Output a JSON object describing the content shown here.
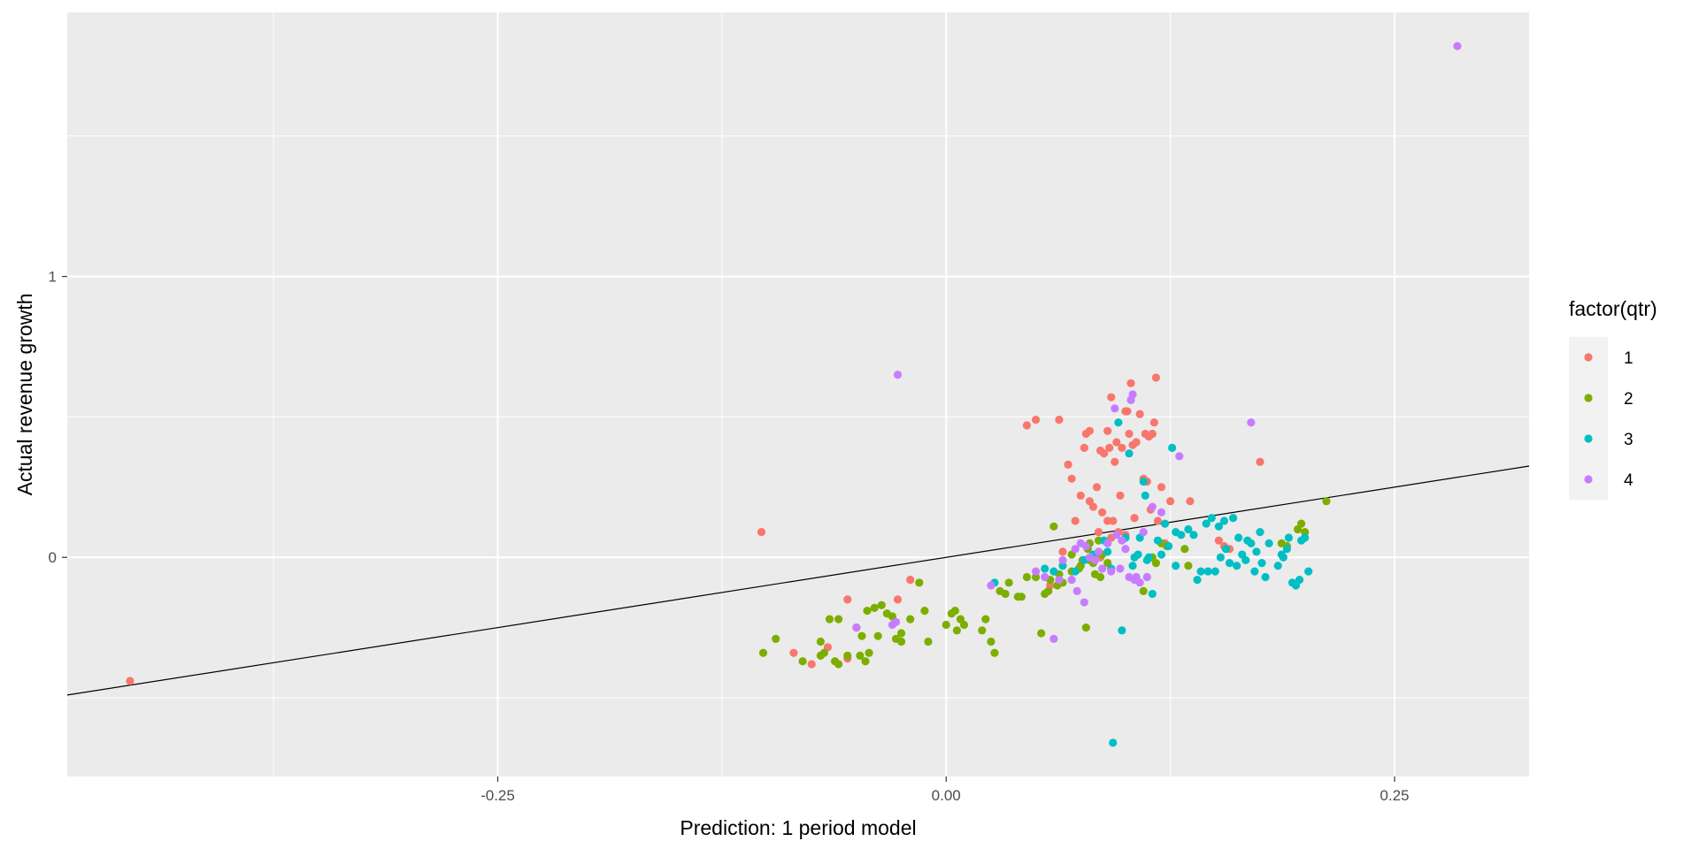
{
  "chart_data": {
    "type": "scatter",
    "xlabel": "Prediction: 1 period model",
    "ylabel": "Actual revenue growth",
    "xlim": [
      -0.49,
      0.325
    ],
    "ylim": [
      -0.78,
      1.94
    ],
    "x_ticks": [
      -0.25,
      0.0,
      0.25
    ],
    "x_tick_labels": [
      "-0.25",
      "0.00",
      "0.25"
    ],
    "y_ticks": [
      0,
      1
    ],
    "y_tick_labels": [
      "0",
      "1"
    ],
    "x_minor_ticks": [
      -0.375,
      -0.125,
      0.125
    ],
    "y_minor_ticks": [
      -0.5,
      0.5,
      1.5
    ],
    "grid": true,
    "background": "#ebebeb",
    "reference_line": {
      "slope": 1,
      "intercept": 0,
      "color": "#000000"
    },
    "legend": {
      "title": "factor(qtr)",
      "placement": "right",
      "entries": [
        {
          "label": "1",
          "color": "#F8766D"
        },
        {
          "label": "2",
          "color": "#7CAE00"
        },
        {
          "label": "3",
          "color": "#00BFC4"
        },
        {
          "label": "4",
          "color": "#C77CFF"
        }
      ]
    },
    "series": [
      {
        "name": "1",
        "color": "#F8766D",
        "points": [
          [
            -0.455,
            -0.44
          ],
          [
            -0.103,
            0.09
          ],
          [
            -0.085,
            -0.34
          ],
          [
            -0.075,
            -0.38
          ],
          [
            -0.066,
            -0.32
          ],
          [
            -0.055,
            -0.36
          ],
          [
            -0.055,
            -0.15
          ],
          [
            -0.027,
            -0.15
          ],
          [
            -0.02,
            -0.08
          ],
          [
            0.045,
            0.47
          ],
          [
            0.05,
            0.49
          ],
          [
            0.058,
            -0.1
          ],
          [
            0.063,
            0.49
          ],
          [
            0.065,
            0.02
          ],
          [
            0.068,
            0.33
          ],
          [
            0.07,
            0.28
          ],
          [
            0.072,
            0.13
          ],
          [
            0.075,
            0.22
          ],
          [
            0.077,
            0.39
          ],
          [
            0.078,
            0.44
          ],
          [
            0.08,
            0.45
          ],
          [
            0.08,
            0.2
          ],
          [
            0.082,
            0.18
          ],
          [
            0.084,
            0.25
          ],
          [
            0.085,
            0.09
          ],
          [
            0.086,
            0.38
          ],
          [
            0.087,
            0.16
          ],
          [
            0.088,
            0.37
          ],
          [
            0.09,
            0.13
          ],
          [
            0.09,
            0.45
          ],
          [
            0.091,
            0.39
          ],
          [
            0.092,
            0.57
          ],
          [
            0.093,
            0.13
          ],
          [
            0.094,
            0.34
          ],
          [
            0.095,
            0.41
          ],
          [
            0.096,
            0.09
          ],
          [
            0.097,
            0.22
          ],
          [
            0.098,
            0.39
          ],
          [
            0.1,
            0.52
          ],
          [
            0.101,
            0.52
          ],
          [
            0.102,
            0.44
          ],
          [
            0.103,
            0.62
          ],
          [
            0.104,
            0.4
          ],
          [
            0.105,
            0.14
          ],
          [
            0.106,
            0.41
          ],
          [
            0.108,
            0.51
          ],
          [
            0.11,
            0.28
          ],
          [
            0.111,
            0.44
          ],
          [
            0.112,
            0.27
          ],
          [
            0.113,
            0.43
          ],
          [
            0.114,
            0.17
          ],
          [
            0.115,
            0.44
          ],
          [
            0.116,
            0.48
          ],
          [
            0.117,
            0.64
          ],
          [
            0.118,
            0.13
          ],
          [
            0.12,
            0.25
          ],
          [
            0.122,
            0.05
          ],
          [
            0.125,
            0.2
          ],
          [
            0.136,
            0.2
          ],
          [
            0.152,
            0.06
          ],
          [
            0.155,
            0.04
          ],
          [
            0.158,
            0.03
          ],
          [
            0.175,
            0.34
          ],
          [
            0.1,
            0.08
          ],
          [
            0.092,
            0.07
          ],
          [
            0.086,
            0.0
          ]
        ]
      },
      {
        "name": "2",
        "color": "#7CAE00",
        "points": [
          [
            -0.102,
            -0.34
          ],
          [
            -0.095,
            -0.29
          ],
          [
            -0.08,
            -0.37
          ],
          [
            -0.07,
            -0.3
          ],
          [
            -0.07,
            -0.35
          ],
          [
            -0.068,
            -0.34
          ],
          [
            -0.065,
            -0.22
          ],
          [
            -0.062,
            -0.37
          ],
          [
            -0.06,
            -0.38
          ],
          [
            -0.06,
            -0.22
          ],
          [
            -0.055,
            -0.35
          ],
          [
            -0.05,
            -0.25
          ],
          [
            -0.048,
            -0.35
          ],
          [
            -0.047,
            -0.28
          ],
          [
            -0.045,
            -0.37
          ],
          [
            -0.044,
            -0.19
          ],
          [
            -0.043,
            -0.34
          ],
          [
            -0.04,
            -0.18
          ],
          [
            -0.038,
            -0.28
          ],
          [
            -0.036,
            -0.17
          ],
          [
            -0.033,
            -0.2
          ],
          [
            -0.03,
            -0.21
          ],
          [
            -0.028,
            -0.29
          ],
          [
            -0.025,
            -0.3
          ],
          [
            -0.025,
            -0.27
          ],
          [
            -0.02,
            -0.22
          ],
          [
            -0.015,
            -0.09
          ],
          [
            -0.01,
            -0.3
          ],
          [
            -0.012,
            -0.19
          ],
          [
            0.0,
            -0.24
          ],
          [
            0.003,
            -0.2
          ],
          [
            0.005,
            -0.19
          ],
          [
            0.006,
            -0.26
          ],
          [
            0.008,
            -0.22
          ],
          [
            0.01,
            -0.24
          ],
          [
            0.02,
            -0.26
          ],
          [
            0.022,
            -0.22
          ],
          [
            0.025,
            -0.3
          ],
          [
            0.027,
            -0.34
          ],
          [
            0.03,
            -0.12
          ],
          [
            0.033,
            -0.13
          ],
          [
            0.035,
            -0.09
          ],
          [
            0.04,
            -0.14
          ],
          [
            0.042,
            -0.14
          ],
          [
            0.045,
            -0.07
          ],
          [
            0.05,
            -0.07
          ],
          [
            0.053,
            -0.27
          ],
          [
            0.055,
            -0.13
          ],
          [
            0.057,
            -0.12
          ],
          [
            0.058,
            -0.08
          ],
          [
            0.06,
            0.11
          ],
          [
            0.062,
            -0.1
          ],
          [
            0.063,
            -0.06
          ],
          [
            0.065,
            -0.09
          ],
          [
            0.07,
            0.01
          ],
          [
            0.07,
            -0.05
          ],
          [
            0.074,
            -0.04
          ],
          [
            0.075,
            -0.03
          ],
          [
            0.076,
            -0.01
          ],
          [
            0.078,
            -0.25
          ],
          [
            0.079,
            0.03
          ],
          [
            0.08,
            0.05
          ],
          [
            0.08,
            -0.01
          ],
          [
            0.082,
            -0.02
          ],
          [
            0.083,
            -0.06
          ],
          [
            0.085,
            0.06
          ],
          [
            0.086,
            -0.07
          ],
          [
            0.087,
            0.01
          ],
          [
            0.09,
            -0.02
          ],
          [
            0.11,
            -0.12
          ],
          [
            0.115,
            0.0
          ],
          [
            0.117,
            -0.02
          ],
          [
            0.12,
            0.05
          ],
          [
            0.123,
            0.04
          ],
          [
            0.133,
            0.03
          ],
          [
            0.135,
            -0.03
          ],
          [
            0.19,
            0.04
          ],
          [
            0.196,
            0.1
          ],
          [
            0.198,
            0.12
          ],
          [
            0.2,
            0.09
          ],
          [
            0.212,
            0.2
          ],
          [
            0.187,
            0.05
          ]
        ]
      },
      {
        "name": "3",
        "color": "#00BFC4",
        "points": [
          [
            0.027,
            -0.09
          ],
          [
            0.055,
            -0.04
          ],
          [
            0.06,
            -0.05
          ],
          [
            0.065,
            -0.03
          ],
          [
            0.072,
            -0.05
          ],
          [
            0.077,
            -0.01
          ],
          [
            0.082,
            0.01
          ],
          [
            0.088,
            0.06
          ],
          [
            0.09,
            0.02
          ],
          [
            0.092,
            -0.04
          ],
          [
            0.093,
            -0.66
          ],
          [
            0.096,
            0.48
          ],
          [
            0.098,
            -0.26
          ],
          [
            0.1,
            0.07
          ],
          [
            0.102,
            0.37
          ],
          [
            0.104,
            -0.03
          ],
          [
            0.105,
            0.0
          ],
          [
            0.107,
            0.01
          ],
          [
            0.108,
            0.07
          ],
          [
            0.11,
            0.27
          ],
          [
            0.111,
            0.22
          ],
          [
            0.112,
            -0.01
          ],
          [
            0.113,
            0.0
          ],
          [
            0.115,
            -0.13
          ],
          [
            0.118,
            0.06
          ],
          [
            0.12,
            0.01
          ],
          [
            0.122,
            0.12
          ],
          [
            0.124,
            0.04
          ],
          [
            0.126,
            0.39
          ],
          [
            0.128,
            0.09
          ],
          [
            0.128,
            -0.03
          ],
          [
            0.131,
            0.08
          ],
          [
            0.135,
            0.1
          ],
          [
            0.138,
            0.08
          ],
          [
            0.14,
            -0.08
          ],
          [
            0.142,
            -0.05
          ],
          [
            0.145,
            0.12
          ],
          [
            0.146,
            -0.05
          ],
          [
            0.148,
            0.14
          ],
          [
            0.15,
            -0.05
          ],
          [
            0.152,
            0.11
          ],
          [
            0.153,
            0.0
          ],
          [
            0.155,
            0.13
          ],
          [
            0.156,
            0.03
          ],
          [
            0.158,
            -0.02
          ],
          [
            0.16,
            0.14
          ],
          [
            0.162,
            -0.03
          ],
          [
            0.163,
            0.07
          ],
          [
            0.165,
            0.01
          ],
          [
            0.167,
            -0.01
          ],
          [
            0.168,
            0.06
          ],
          [
            0.17,
            0.05
          ],
          [
            0.172,
            -0.05
          ],
          [
            0.173,
            0.02
          ],
          [
            0.175,
            0.09
          ],
          [
            0.176,
            -0.02
          ],
          [
            0.178,
            -0.07
          ],
          [
            0.18,
            0.05
          ],
          [
            0.185,
            -0.03
          ],
          [
            0.187,
            0.01
          ],
          [
            0.19,
            0.03
          ],
          [
            0.191,
            0.07
          ],
          [
            0.193,
            -0.09
          ],
          [
            0.195,
            -0.1
          ],
          [
            0.197,
            -0.08
          ],
          [
            0.198,
            0.06
          ],
          [
            0.2,
            0.07
          ],
          [
            0.202,
            -0.05
          ],
          [
            0.188,
            0.0
          ]
        ]
      },
      {
        "name": "4",
        "color": "#C77CFF",
        "points": [
          [
            -0.05,
            -0.25
          ],
          [
            -0.028,
            -0.23
          ],
          [
            -0.027,
            0.65
          ],
          [
            0.025,
            -0.1
          ],
          [
            0.05,
            -0.05
          ],
          [
            0.055,
            -0.07
          ],
          [
            0.06,
            -0.29
          ],
          [
            0.065,
            -0.01
          ],
          [
            0.07,
            -0.08
          ],
          [
            0.072,
            0.03
          ],
          [
            0.073,
            -0.12
          ],
          [
            0.075,
            0.05
          ],
          [
            0.077,
            -0.16
          ],
          [
            0.078,
            0.04
          ],
          [
            0.08,
            0.0
          ],
          [
            0.083,
            -0.01
          ],
          [
            0.085,
            0.02
          ],
          [
            0.087,
            -0.04
          ],
          [
            0.09,
            0.05
          ],
          [
            0.092,
            -0.05
          ],
          [
            0.094,
            0.53
          ],
          [
            0.095,
            0.08
          ],
          [
            0.097,
            -0.04
          ],
          [
            0.098,
            0.06
          ],
          [
            0.1,
            0.03
          ],
          [
            0.102,
            -0.07
          ],
          [
            0.103,
            0.56
          ],
          [
            0.104,
            0.58
          ],
          [
            0.105,
            -0.08
          ],
          [
            0.106,
            -0.07
          ],
          [
            0.108,
            -0.09
          ],
          [
            0.11,
            0.09
          ],
          [
            0.112,
            -0.07
          ],
          [
            0.115,
            0.18
          ],
          [
            0.12,
            0.16
          ],
          [
            0.13,
            0.36
          ],
          [
            0.17,
            0.48
          ],
          [
            0.285,
            1.82
          ],
          [
            -0.03,
            -0.24
          ],
          [
            0.063,
            -0.08
          ]
        ]
      }
    ]
  }
}
